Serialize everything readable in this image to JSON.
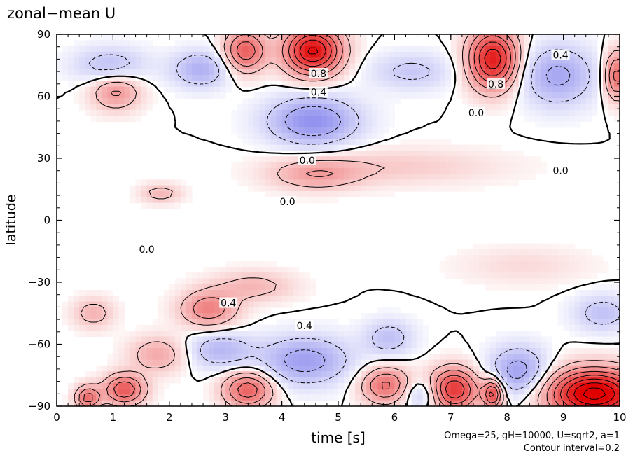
{
  "chart_data": {
    "type": "heatmap",
    "title": "zonal−mean U",
    "xlabel": "time [s]",
    "ylabel": "latitude",
    "xlim": [
      0,
      10
    ],
    "ylim": [
      -90,
      90
    ],
    "x_ticks": [
      0,
      1,
      2,
      3,
      4,
      5,
      6,
      7,
      8,
      9,
      10
    ],
    "y_ticks": [
      90,
      60,
      30,
      0,
      -30,
      -60,
      -90
    ],
    "y_tick_labels": [
      "90",
      "60",
      "30",
      "0",
      "−30",
      "−60",
      "−90"
    ],
    "notes": [
      "Omega=25, gH=10000, U=sqrt2, a=1",
      "Contour interval=0.2"
    ],
    "contour_interval": 0.2,
    "colormap": {
      "positive": "#e00000",
      "negative": "#3030e0",
      "zero": "#ffffff"
    },
    "contour_labels": [
      {
        "text": "0.4",
        "x": 8.95,
        "y": 80
      },
      {
        "text": "0.8",
        "x": 7.8,
        "y": 66
      },
      {
        "text": "0.8",
        "x": 4.65,
        "y": 71
      },
      {
        "text": "0.4",
        "x": 4.65,
        "y": 62
      },
      {
        "text": "0.0",
        "x": 7.45,
        "y": 52
      },
      {
        "text": "0.0",
        "x": 4.45,
        "y": 29
      },
      {
        "text": "0.0",
        "x": 8.95,
        "y": 24
      },
      {
        "text": "0.0",
        "x": 4.1,
        "y": 9
      },
      {
        "text": "0.0",
        "x": 1.6,
        "y": -14
      },
      {
        "text": "0.4",
        "x": 3.05,
        "y": -40
      },
      {
        "text": "0.4",
        "x": 4.4,
        "y": -51
      }
    ],
    "features": [
      {
        "t": 4.55,
        "lat": 82,
        "sigma_t": 0.35,
        "sigma_lat": 8,
        "amp": 1.25
      },
      {
        "t": 3.35,
        "lat": 82,
        "sigma_t": 0.25,
        "sigma_lat": 7,
        "amp": 0.75
      },
      {
        "t": 7.75,
        "lat": 78,
        "sigma_t": 0.3,
        "sigma_lat": 10,
        "amp": 1.15
      },
      {
        "t": 9.95,
        "lat": 70,
        "sigma_t": 0.15,
        "sigma_lat": 8,
        "amp": 0.7
      },
      {
        "t": 1.05,
        "lat": 62,
        "sigma_t": 0.3,
        "sigma_lat": 6,
        "amp": 0.45
      },
      {
        "t": 4.55,
        "lat": 48,
        "sigma_t": 0.55,
        "sigma_lat": 8,
        "amp": -0.6
      },
      {
        "t": 8.9,
        "lat": 70,
        "sigma_t": 0.45,
        "sigma_lat": 10,
        "amp": -0.45
      },
      {
        "t": 2.55,
        "lat": 73,
        "sigma_t": 0.35,
        "sigma_lat": 6,
        "amp": -0.4
      },
      {
        "t": 0.95,
        "lat": 75,
        "sigma_t": 0.45,
        "sigma_lat": 6,
        "amp": -0.3
      },
      {
        "t": 6.3,
        "lat": 72,
        "sigma_t": 0.5,
        "sigma_lat": 6,
        "amp": -0.25
      },
      {
        "t": 4.6,
        "lat": 22,
        "sigma_t": 0.55,
        "sigma_lat": 5,
        "amp": 0.35
      },
      {
        "t": 6.0,
        "lat": 26,
        "sigma_t": 1.3,
        "sigma_lat": 6,
        "amp": 0.18
      },
      {
        "t": 1.85,
        "lat": 13,
        "sigma_t": 0.25,
        "sigma_lat": 3,
        "amp": 0.3
      },
      {
        "t": 8.3,
        "lat": -22,
        "sigma_t": 0.8,
        "sigma_lat": 6,
        "amp": 0.12
      },
      {
        "t": 2.7,
        "lat": -43,
        "sigma_t": 0.35,
        "sigma_lat": 6,
        "amp": 0.55
      },
      {
        "t": 3.5,
        "lat": -32,
        "sigma_t": 0.5,
        "sigma_lat": 5,
        "amp": 0.28
      },
      {
        "t": 1.8,
        "lat": -65,
        "sigma_t": 0.35,
        "sigma_lat": 6,
        "amp": 0.35
      },
      {
        "t": 0.65,
        "lat": -45,
        "sigma_t": 0.25,
        "sigma_lat": 5,
        "amp": 0.3
      },
      {
        "t": 4.4,
        "lat": -68,
        "sigma_t": 0.55,
        "sigma_lat": 8,
        "amp": -0.5
      },
      {
        "t": 2.9,
        "lat": -63,
        "sigma_t": 0.4,
        "sigma_lat": 6,
        "amp": -0.35
      },
      {
        "t": 8.2,
        "lat": -73,
        "sigma_t": 0.35,
        "sigma_lat": 8,
        "amp": -0.5
      },
      {
        "t": 5.9,
        "lat": -57,
        "sigma_t": 0.3,
        "sigma_lat": 6,
        "amp": -0.3
      },
      {
        "t": 9.7,
        "lat": -45,
        "sigma_t": 0.35,
        "sigma_lat": 6,
        "amp": -0.3
      },
      {
        "t": 1.2,
        "lat": -82,
        "sigma_t": 0.25,
        "sigma_lat": 5,
        "amp": 0.8
      },
      {
        "t": 0.55,
        "lat": -86,
        "sigma_t": 0.15,
        "sigma_lat": 4,
        "amp": 0.7
      },
      {
        "t": 3.4,
        "lat": -82,
        "sigma_t": 0.3,
        "sigma_lat": 6,
        "amp": 0.75
      },
      {
        "t": 5.85,
        "lat": -80,
        "sigma_t": 0.3,
        "sigma_lat": 6,
        "amp": 0.65
      },
      {
        "t": 7.05,
        "lat": -82,
        "sigma_t": 0.3,
        "sigma_lat": 7,
        "amp": 1.0
      },
      {
        "t": 7.75,
        "lat": -84,
        "sigma_t": 0.12,
        "sigma_lat": 5,
        "amp": 0.9
      },
      {
        "t": 9.55,
        "lat": -84,
        "sigma_t": 0.55,
        "sigma_lat": 8,
        "amp": 1.5
      },
      {
        "t": 6.5,
        "lat": -84,
        "sigma_t": 0.25,
        "sigma_lat": 5,
        "amp": -0.35
      }
    ]
  }
}
